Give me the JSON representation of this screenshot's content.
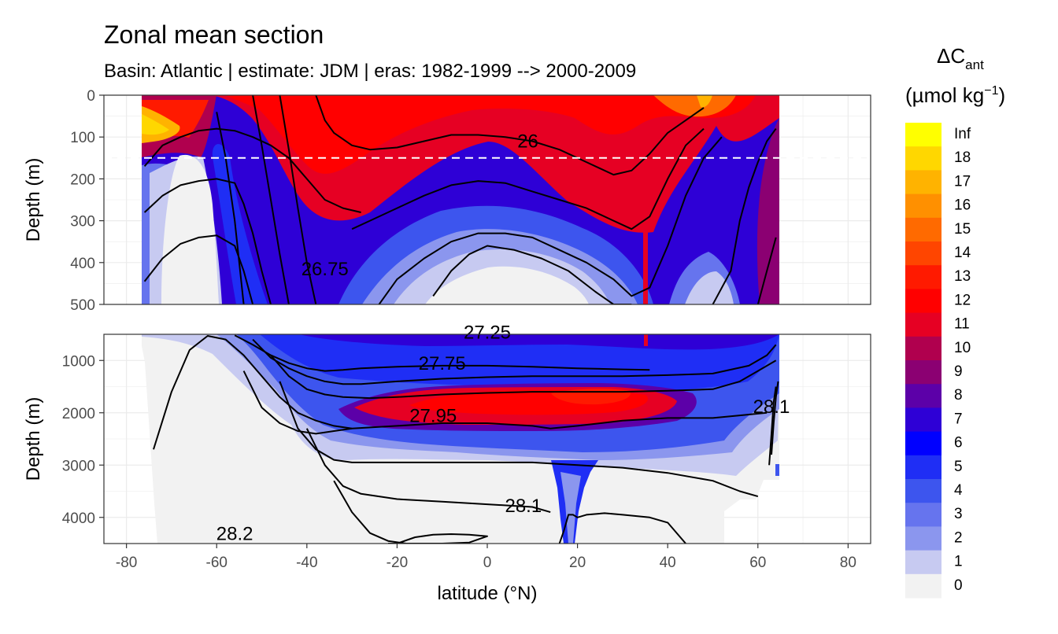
{
  "chart_data": {
    "type": "heatmap",
    "title": "Zonal mean section",
    "subtitle": "Basin: Atlantic | estimate: JDM  | eras: 1982-1999 --> 2000-2009",
    "xlabel": "latitude (°N)",
    "x_ticks": [
      -80,
      -60,
      -40,
      -20,
      0,
      20,
      40,
      60,
      80
    ],
    "xlim": [
      -85,
      85
    ],
    "legend": {
      "title_main": "ΔC",
      "title_sub": "ant",
      "units_base": "(µmol kg",
      "units_sup": "−1",
      "units_close": ")",
      "bins": [
        "Inf",
        "18",
        "17",
        "16",
        "15",
        "14",
        "13",
        "12",
        "11",
        "10",
        "9",
        "8",
        "7",
        "6",
        "5",
        "4",
        "3",
        "2",
        "1",
        "0"
      ],
      "colors": [
        "#ffff00",
        "#ffd700",
        "#ffb300",
        "#ff9000",
        "#ff6a00",
        "#ff4500",
        "#ff1a00",
        "#ff0000",
        "#e60023",
        "#b0004e",
        "#8b0072",
        "#5c00a8",
        "#2e00d6",
        "#0000ff",
        "#1f2ef5",
        "#3d55ee",
        "#6674ee",
        "#8b96ee",
        "#c7caf1",
        "#f2f2f2"
      ],
      "position": "right"
    },
    "panels": [
      {
        "name": "upper",
        "ylabel": "Depth (m)",
        "ylim": [
          0,
          500
        ],
        "y_ticks": [
          0,
          100,
          200,
          300,
          400,
          500
        ],
        "reference_depth": 150,
        "contour_labels": [
          {
            "text": "26",
            "lat": 9,
            "depth": 125
          },
          {
            "text": "26.75",
            "lat": -36,
            "depth": 430
          }
        ],
        "isopycnals": [
          {
            "lat": [
              -76,
              -72,
              -68,
              -64,
              -60,
              -56,
              -52,
              -48,
              -44,
              -40,
              -36,
              -32,
              -28
            ],
            "depth": [
              170,
              120,
              100,
              85,
              80,
              85,
              100,
              120,
              150,
              200,
              250,
              270,
              280
            ]
          },
          {
            "lat": [
              -76,
              -72,
              -68,
              -64,
              -60,
              -56,
              -54,
              -52,
              -50,
              -48
            ],
            "depth": [
              280,
              240,
              215,
              205,
              200,
              210,
              260,
              330,
              420,
              500
            ]
          },
          {
            "lat": [
              -76,
              -72,
              -68,
              -64,
              -60,
              -56,
              -54,
              -52
            ],
            "depth": [
              445,
              390,
              355,
              340,
              335,
              360,
              420,
              500
            ]
          },
          {
            "lat": [
              -60,
              -58,
              -56,
              -54
            ],
            "depth": [
              40,
              150,
              300,
              500
            ]
          },
          {
            "lat": [
              -52,
              -50,
              -48,
              -46,
              -44
            ],
            "depth": [
              0,
              120,
              250,
              380,
              500
            ]
          },
          {
            "lat": [
              -46,
              -44,
              -42,
              -40,
              -38
            ],
            "depth": [
              0,
              130,
              270,
              400,
              500
            ]
          },
          {
            "lat": [
              -38,
              -36,
              -34,
              -30,
              -26,
              -20,
              -14,
              -8,
              -2,
              4,
              10,
              16,
              22,
              28,
              32,
              36,
              40,
              44,
              48
            ],
            "depth": [
              0,
              60,
              90,
              120,
              130,
              125,
              110,
              95,
              95,
              100,
              110,
              130,
              160,
              190,
              180,
              140,
              90,
              60,
              30
            ]
          },
          {
            "lat": [
              -30,
              -26,
              -20,
              -14,
              -8,
              -2,
              4,
              10,
              16,
              22,
              28,
              32,
              36,
              40,
              44,
              48
            ],
            "depth": [
              320,
              300,
              270,
              240,
              215,
              205,
              210,
              230,
              250,
              270,
              300,
              320,
              290,
              200,
              120,
              80
            ]
          },
          {
            "lat": [
              -24,
              -20,
              -14,
              -8,
              -2,
              4,
              10,
              16,
              22,
              28,
              32,
              36,
              40,
              44,
              48,
              52
            ],
            "depth": [
              500,
              440,
              390,
              350,
              330,
              330,
              340,
              370,
              400,
              440,
              480,
              460,
              360,
              240,
              150,
              100
            ]
          },
          {
            "lat": [
              -12,
              -8,
              -4,
              0,
              6,
              12,
              18,
              24,
              28,
              32
            ],
            "depth": [
              480,
              420,
              380,
              360,
              370,
              390,
              420,
              470,
              500,
              500
            ]
          },
          {
            "lat": [
              50,
              54,
              56,
              58,
              60,
              62,
              64
            ],
            "depth": [
              500,
              420,
              300,
              220,
              160,
              110,
              80
            ]
          },
          {
            "lat": [
              60,
              62,
              63,
              64
            ],
            "depth": [
              500,
              420,
              380,
              340
            ]
          }
        ]
      },
      {
        "name": "lower",
        "ylabel": "Depth (m)",
        "ylim": [
          500,
          4500
        ],
        "y_ticks": [
          1000,
          2000,
          3000,
          4000
        ],
        "contour_labels": [
          {
            "text": "27.25",
            "lat": 0,
            "depth": 580
          },
          {
            "text": "27.75",
            "lat": -10,
            "depth": 1180
          },
          {
            "text": "27.95",
            "lat": -12,
            "depth": 2180
          },
          {
            "text": "28.1",
            "lat": 8,
            "depth": 3900
          },
          {
            "text": "28.2",
            "lat": -56,
            "depth": 4430
          },
          {
            "text": "28.1",
            "lat": 63,
            "depth": 2000
          }
        ],
        "isopycnals": [
          {
            "lat": [
              -74,
              -70,
              -66,
              -62,
              -58,
              -54,
              -50,
              -46,
              -42,
              -38,
              -34,
              -30
            ],
            "depth": [
              2700,
              1600,
              800,
              530,
              600,
              900,
              1300,
              1700,
              2000,
              2150,
              2250,
              2300
            ]
          },
          {
            "lat": [
              -56,
              -52,
              -48,
              -44,
              -40,
              -36,
              -32,
              -28,
              -20,
              -10,
              0,
              10,
              20,
              30,
              36
            ],
            "depth": [
              520,
              700,
              900,
              1050,
              1150,
              1200,
              1180,
              1150,
              1120,
              1100,
              1100,
              1120,
              1150,
              1170,
              1180
            ]
          },
          {
            "lat": [
              -52,
              -48,
              -44,
              -40,
              -36,
              -32,
              -28,
              -20,
              -10,
              0,
              10,
              20,
              30,
              40,
              50,
              58,
              62,
              64
            ],
            "depth": [
              600,
              950,
              1150,
              1300,
              1400,
              1450,
              1450,
              1400,
              1350,
              1320,
              1300,
              1300,
              1300,
              1280,
              1250,
              1100,
              900,
              700
            ]
          },
          {
            "lat": [
              -48,
              -44,
              -40,
              -36,
              -32,
              -26,
              -20,
              -10,
              0,
              10,
              20,
              30,
              40,
              50,
              56,
              60,
              64
            ],
            "depth": [
              900,
              1300,
              1550,
              1650,
              1700,
              1720,
              1700,
              1650,
              1620,
              1600,
              1600,
              1600,
              1580,
              1550,
              1400,
              1200,
              1000
            ]
          },
          {
            "lat": [
              -54,
              -50,
              -46,
              -42,
              -38,
              -34,
              -30,
              -20,
              -10,
              0,
              10,
              14,
              20,
              30,
              40,
              50,
              56,
              62
            ],
            "depth": [
              1200,
              1900,
              2200,
              2350,
              2400,
              2350,
              2300,
              2250,
              2200,
              2200,
              2250,
              2300,
              2250,
              2150,
              2100,
              2100,
              2050,
              2000
            ]
          },
          {
            "lat": [
              -46,
              -42,
              -38,
              -34,
              -30,
              -20,
              -10,
              0,
              10,
              20,
              30,
              40,
              50,
              56,
              60
            ],
            "depth": [
              1400,
              2300,
              2700,
              2900,
              2950,
              2950,
              2950,
              2950,
              2950,
              3000,
              3050,
              3150,
              3300,
              3500,
              3600
            ]
          },
          {
            "lat": [
              -40,
              -36,
              -32,
              -28,
              -20,
              -10,
              0,
              10,
              14
            ],
            "depth": [
              2300,
              3000,
              3400,
              3550,
              3650,
              3700,
              3750,
              3800,
              3900
            ]
          },
          {
            "lat": [
              -34,
              -30,
              -26,
              -22,
              -18
            ],
            "depth": [
              3300,
              3900,
              4300,
              4450,
              4500
            ]
          },
          {
            "lat": [
              -20,
              -16,
              -12,
              -8,
              -4,
              0,
              -4,
              -10,
              -16,
              -22
            ],
            "depth": [
              4500,
              4380,
              4330,
              4320,
              4330,
              4360,
              4480,
              4500,
              4500,
              4500
            ]
          },
          {
            "lat": [
              16,
              17,
              18,
              19,
              20,
              22,
              26,
              30,
              36,
              40,
              44
            ],
            "depth": [
              4500,
              4250,
              3950,
              3950,
              4000,
              3950,
              3920,
              3950,
              4000,
              4100,
              4500
            ]
          },
          {
            "lat": [
              62.5,
              63,
              63.5,
              64
            ],
            "depth": [
              3000,
              2400,
              1800,
              1500
            ]
          },
          {
            "lat": [
              63,
              63.5,
              64,
              64.5
            ],
            "depth": [
              2800,
              2200,
              1700,
              1400
            ]
          }
        ]
      }
    ]
  }
}
